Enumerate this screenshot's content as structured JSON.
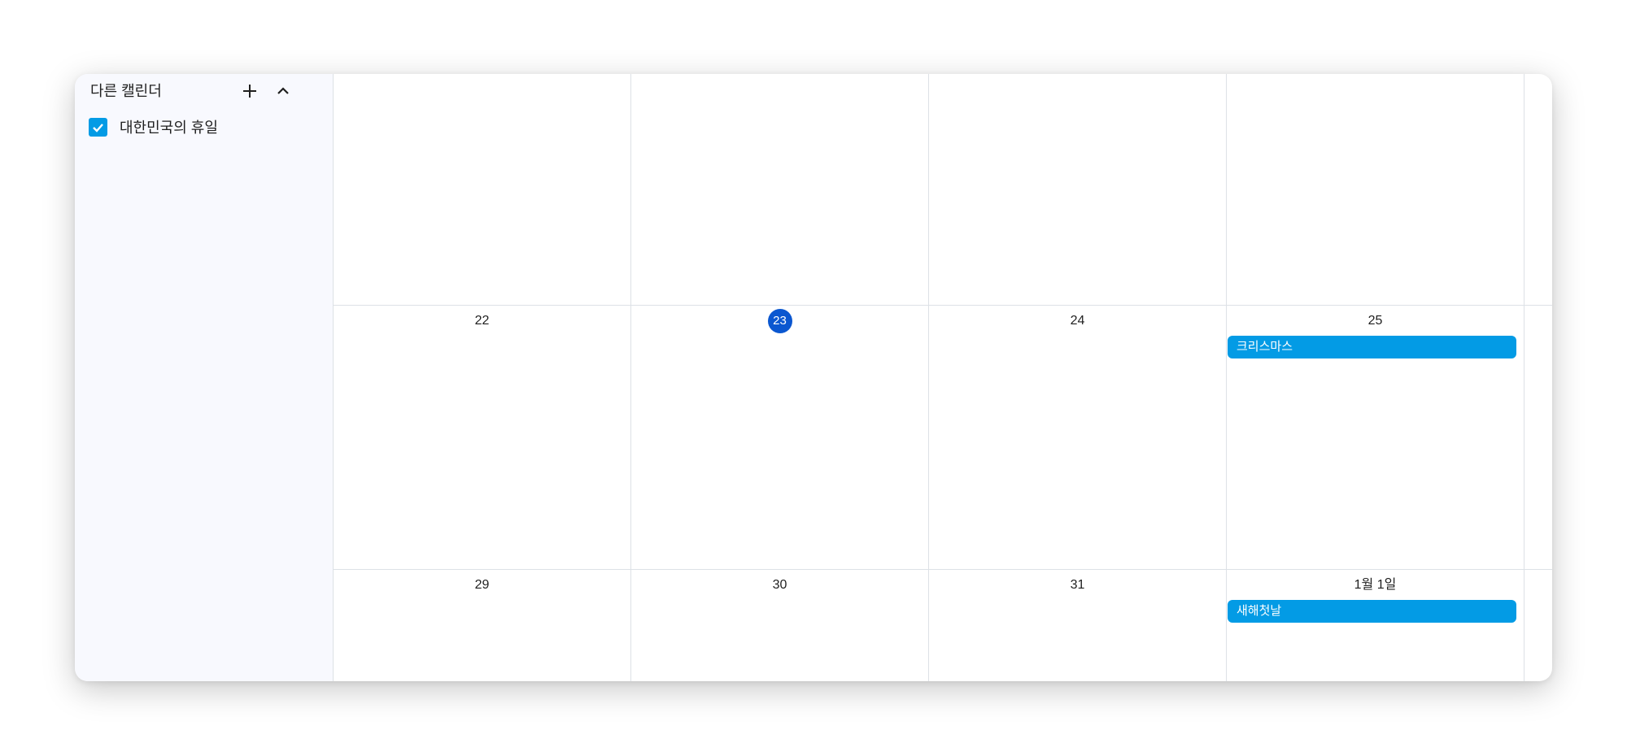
{
  "sidebar": {
    "section_title": "다른 캘린더",
    "calendars": [
      {
        "label": "대한민국의 휴일",
        "checked": true,
        "color": "#039be5"
      }
    ]
  },
  "calendar": {
    "today_color": "#0b57d0",
    "weeks": [
      {
        "days": [
          "",
          "",
          "",
          ""
        ]
      },
      {
        "days": [
          "22",
          "23",
          "24",
          "25"
        ]
      },
      {
        "days": [
          "29",
          "30",
          "31",
          "1월 1일"
        ]
      }
    ],
    "today": "23",
    "events": [
      {
        "title": "크리스마스",
        "date": "25"
      },
      {
        "title": "새해첫날",
        "date": "1월 1일"
      }
    ]
  }
}
